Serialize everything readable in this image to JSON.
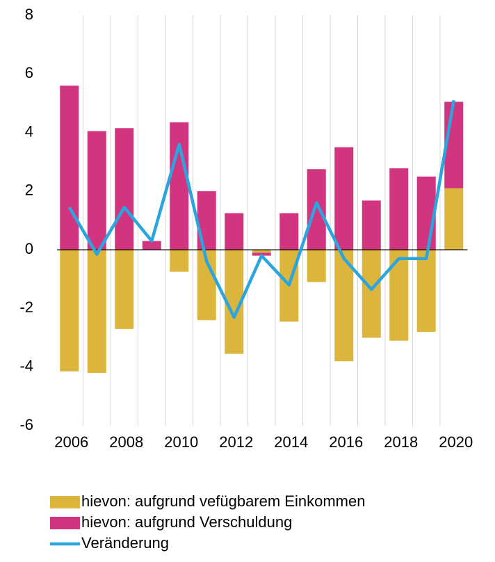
{
  "chart_data": {
    "type": "bar",
    "categories": [
      "2006",
      null,
      "2008",
      null,
      "2010",
      null,
      "2012",
      null,
      "2014",
      null,
      "2016",
      null,
      "2018",
      null,
      "2020"
    ],
    "series": [
      {
        "name": "hievon: aufgrund vefügbarem Einkommen",
        "type": "bar",
        "color": "#dbb53c",
        "values": [
          -4.15,
          -4.2,
          -2.7,
          0,
          -0.75,
          -2.4,
          -3.55,
          -0.1,
          -2.45,
          -1.1,
          -3.8,
          -3.0,
          -3.1,
          -2.8,
          2.1
        ]
      },
      {
        "name": "hievon: aufgrund Verschuldung",
        "type": "bar",
        "color": "#d1357f",
        "values": [
          5.6,
          4.05,
          4.15,
          0.3,
          4.35,
          2.0,
          1.25,
          -0.1,
          1.25,
          2.75,
          3.5,
          1.68,
          2.78,
          2.5,
          2.95
        ]
      },
      {
        "name": "Veränderung",
        "type": "line",
        "color": "#2aa5df",
        "values": [
          1.45,
          -0.15,
          1.45,
          0.3,
          3.6,
          -0.4,
          -2.3,
          -0.2,
          -1.2,
          1.6,
          -0.3,
          -1.35,
          -0.3,
          -0.3,
          5.1
        ]
      }
    ],
    "ylim": [
      -6,
      8
    ],
    "yticks": [
      -6,
      -4,
      -2,
      0,
      2,
      4,
      6,
      8
    ]
  }
}
